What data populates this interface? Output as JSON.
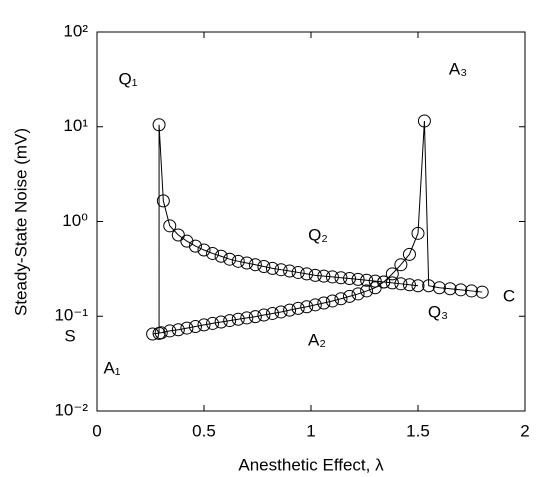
{
  "chart_data": {
    "type": "line",
    "xlabel": "Anesthetic Effect, λ",
    "ylabel": "Steady-State Noise (mV)",
    "xlim": [
      0,
      2
    ],
    "xticks": [
      0,
      {
        "value": 0.5,
        "label": "0.5"
      },
      1,
      {
        "value": 1.5,
        "label": "1.5"
      },
      2
    ],
    "ylim": [
      0.01,
      100
    ],
    "yscale": "log",
    "yticks": [
      {
        "value": 0.01,
        "label": "10⁻²"
      },
      {
        "value": 0.1,
        "label": "10⁻¹"
      },
      {
        "value": 1,
        "label": "10⁰"
      },
      {
        "value": 10,
        "label": "10¹"
      },
      {
        "value": 100,
        "label": "10²"
      }
    ],
    "color": "#000000",
    "marker": "circle",
    "series": [
      {
        "x": [
          0.26,
          0.3,
          0.34,
          0.38,
          0.42,
          0.46,
          0.5,
          0.54,
          0.58,
          0.62,
          0.66,
          0.7,
          0.74,
          0.78,
          0.82,
          0.86,
          0.9,
          0.94,
          0.98,
          1.02,
          1.06,
          1.1,
          1.14,
          1.18,
          1.22,
          1.26,
          1.3,
          1.34,
          1.38,
          1.42,
          1.46,
          1.5,
          1.53,
          1.55,
          1.6,
          1.65,
          1.7,
          1.75,
          1.8
        ],
        "values": [
          0.065,
          0.067,
          0.07,
          0.072,
          0.075,
          0.078,
          0.081,
          0.084,
          0.087,
          0.09,
          0.093,
          0.096,
          0.099,
          0.103,
          0.107,
          0.111,
          0.116,
          0.121,
          0.126,
          0.132,
          0.138,
          0.145,
          0.153,
          0.162,
          0.172,
          0.185,
          0.2,
          0.23,
          0.28,
          0.35,
          0.45,
          0.75,
          11.5,
          0.21,
          0.2,
          0.195,
          0.19,
          0.185,
          0.18
        ]
      },
      {
        "x": [
          1.5,
          1.46,
          1.42,
          1.38,
          1.34,
          1.3,
          1.26,
          1.22,
          1.18,
          1.14,
          1.1,
          1.06,
          1.02,
          0.98,
          0.94,
          0.9,
          0.86,
          0.82,
          0.78,
          0.74,
          0.7,
          0.66,
          0.62,
          0.58,
          0.54,
          0.5,
          0.46,
          0.42,
          0.38,
          0.34,
          0.31,
          0.29,
          0.29
        ],
        "values": [
          0.21,
          0.215,
          0.22,
          0.225,
          0.23,
          0.235,
          0.24,
          0.245,
          0.25,
          0.255,
          0.26,
          0.265,
          0.27,
          0.28,
          0.29,
          0.3,
          0.31,
          0.32,
          0.335,
          0.35,
          0.365,
          0.38,
          0.4,
          0.43,
          0.46,
          0.5,
          0.55,
          0.62,
          0.72,
          0.9,
          1.65,
          10.5,
          0.066
        ]
      }
    ],
    "annotations": [
      "Q₁",
      "Q₂",
      "Q₃",
      "A₁",
      "A₂",
      "A₃",
      "S",
      "C"
    ]
  }
}
